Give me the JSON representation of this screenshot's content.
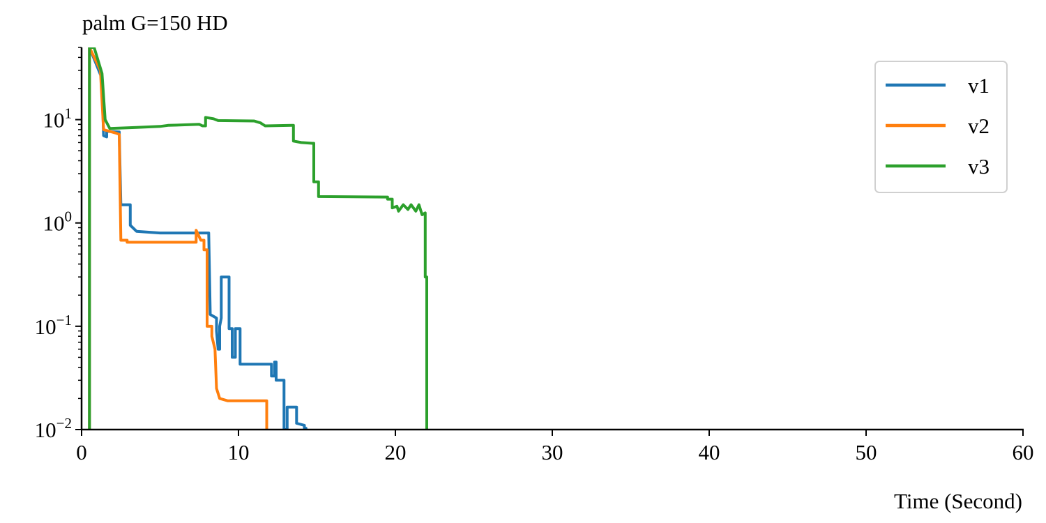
{
  "chart_data": {
    "type": "line",
    "title": "palm G=150 HD",
    "xlabel": "Time (Second)",
    "ylabel": "",
    "xlim": [
      0,
      60
    ],
    "ylim": [
      0.01,
      50
    ],
    "yscale": "log",
    "x_ticks": [
      0,
      10,
      20,
      30,
      40,
      50,
      60
    ],
    "x_tick_labels": [
      "0",
      "10",
      "20",
      "30",
      "40",
      "50",
      "60"
    ],
    "y_ticks": [
      {
        "value": 0.01,
        "base": "10",
        "exp": "−2"
      },
      {
        "value": 0.1,
        "base": "10",
        "exp": "−1"
      },
      {
        "value": 1,
        "base": "10",
        "exp": "0"
      },
      {
        "value": 10,
        "base": "10",
        "exp": "1"
      }
    ],
    "grid": false,
    "legend_position": "top-right",
    "colors": {
      "v1": "#1f77b4",
      "v2": "#ff7f0e",
      "v3": "#2ca02c",
      "axis": "#000000"
    },
    "series": [
      {
        "name": "v1",
        "color": "#1f77b4",
        "points": [
          [
            0.5,
            50
          ],
          [
            0.5,
            0.01
          ],
          [
            0.5,
            50
          ],
          [
            1.3,
            25
          ],
          [
            1.4,
            7
          ],
          [
            1.6,
            6.8
          ],
          [
            1.6,
            7.7
          ],
          [
            2.4,
            7.6
          ],
          [
            2.5,
            1.5
          ],
          [
            3.1,
            1.5
          ],
          [
            3.1,
            0.95
          ],
          [
            3.5,
            0.83
          ],
          [
            5,
            0.8
          ],
          [
            7.5,
            0.8
          ],
          [
            7.6,
            0.8
          ],
          [
            8.1,
            0.8
          ],
          [
            8.2,
            0.13
          ],
          [
            8.6,
            0.12
          ],
          [
            8.6,
            0.09
          ],
          [
            8.7,
            0.06
          ],
          [
            8.8,
            0.06
          ],
          [
            8.8,
            0.1
          ],
          [
            8.9,
            0.12
          ],
          [
            8.9,
            0.3
          ],
          [
            9.4,
            0.3
          ],
          [
            9.4,
            0.095
          ],
          [
            9.6,
            0.095
          ],
          [
            9.6,
            0.05
          ],
          [
            9.8,
            0.05
          ],
          [
            9.8,
            0.095
          ],
          [
            10.1,
            0.095
          ],
          [
            10.1,
            0.043
          ],
          [
            12.1,
            0.043
          ],
          [
            12.1,
            0.033
          ],
          [
            12.3,
            0.033
          ],
          [
            12.3,
            0.045
          ],
          [
            12.4,
            0.045
          ],
          [
            12.4,
            0.03
          ],
          [
            12.9,
            0.03
          ],
          [
            12.9,
            0.01
          ],
          [
            13.1,
            0.01
          ],
          [
            13.1,
            0.0165
          ],
          [
            13.7,
            0.0165
          ],
          [
            13.7,
            0.0115
          ],
          [
            14.2,
            0.011
          ],
          [
            14.2,
            0.0103
          ],
          [
            14.3,
            0.0103
          ],
          [
            14.3,
            0.01
          ]
        ]
      },
      {
        "name": "v2",
        "color": "#ff7f0e",
        "points": [
          [
            0.5,
            50
          ],
          [
            0.5,
            0.01
          ],
          [
            0.5,
            50
          ],
          [
            1.2,
            30
          ],
          [
            1.4,
            8
          ],
          [
            2.2,
            7.4
          ],
          [
            2.4,
            7.2
          ],
          [
            2.5,
            0.68
          ],
          [
            2.9,
            0.68
          ],
          [
            2.9,
            0.65
          ],
          [
            7.3,
            0.65
          ],
          [
            7.3,
            0.85
          ],
          [
            7.6,
            0.68
          ],
          [
            7.8,
            0.68
          ],
          [
            7.8,
            0.55
          ],
          [
            8,
            0.55
          ],
          [
            8,
            0.1
          ],
          [
            8.3,
            0.1
          ],
          [
            8.3,
            0.08
          ],
          [
            8.5,
            0.06
          ],
          [
            8.6,
            0.025
          ],
          [
            8.8,
            0.02
          ],
          [
            9.3,
            0.019
          ],
          [
            11.8,
            0.019
          ],
          [
            11.8,
            0.01
          ]
        ]
      },
      {
        "name": "v3",
        "color": "#2ca02c",
        "points": [
          [
            0.5,
            0.01
          ],
          [
            0.5,
            50
          ],
          [
            0.8,
            50
          ],
          [
            1.3,
            28
          ],
          [
            1.5,
            10
          ],
          [
            1.8,
            8.2
          ],
          [
            3.5,
            8.4
          ],
          [
            5,
            8.6
          ],
          [
            5.5,
            8.8
          ],
          [
            7.5,
            9
          ],
          [
            7.7,
            8.7
          ],
          [
            7.9,
            8.7
          ],
          [
            7.9,
            10.5
          ],
          [
            8.4,
            10.2
          ],
          [
            8.7,
            9.8
          ],
          [
            11,
            9.7
          ],
          [
            11.4,
            9.3
          ],
          [
            11.7,
            8.7
          ],
          [
            13.4,
            8.8
          ],
          [
            13.5,
            8.8
          ],
          [
            13.5,
            6.2
          ],
          [
            14,
            6
          ],
          [
            14.7,
            5.9
          ],
          [
            14.8,
            5.9
          ],
          [
            14.8,
            2.5
          ],
          [
            15.1,
            2.5
          ],
          [
            15.1,
            1.8
          ],
          [
            19.5,
            1.78
          ],
          [
            19.5,
            1.7
          ],
          [
            19.8,
            1.7
          ],
          [
            19.8,
            1.4
          ],
          [
            20.1,
            1.45
          ],
          [
            20.2,
            1.3
          ],
          [
            20.5,
            1.5
          ],
          [
            20.8,
            1.35
          ],
          [
            21,
            1.5
          ],
          [
            21.3,
            1.3
          ],
          [
            21.5,
            1.5
          ],
          [
            21.7,
            1.2
          ],
          [
            21.9,
            1.25
          ],
          [
            21.9,
            0.3
          ],
          [
            22,
            0.3
          ],
          [
            22,
            0.01
          ]
        ]
      }
    ]
  }
}
